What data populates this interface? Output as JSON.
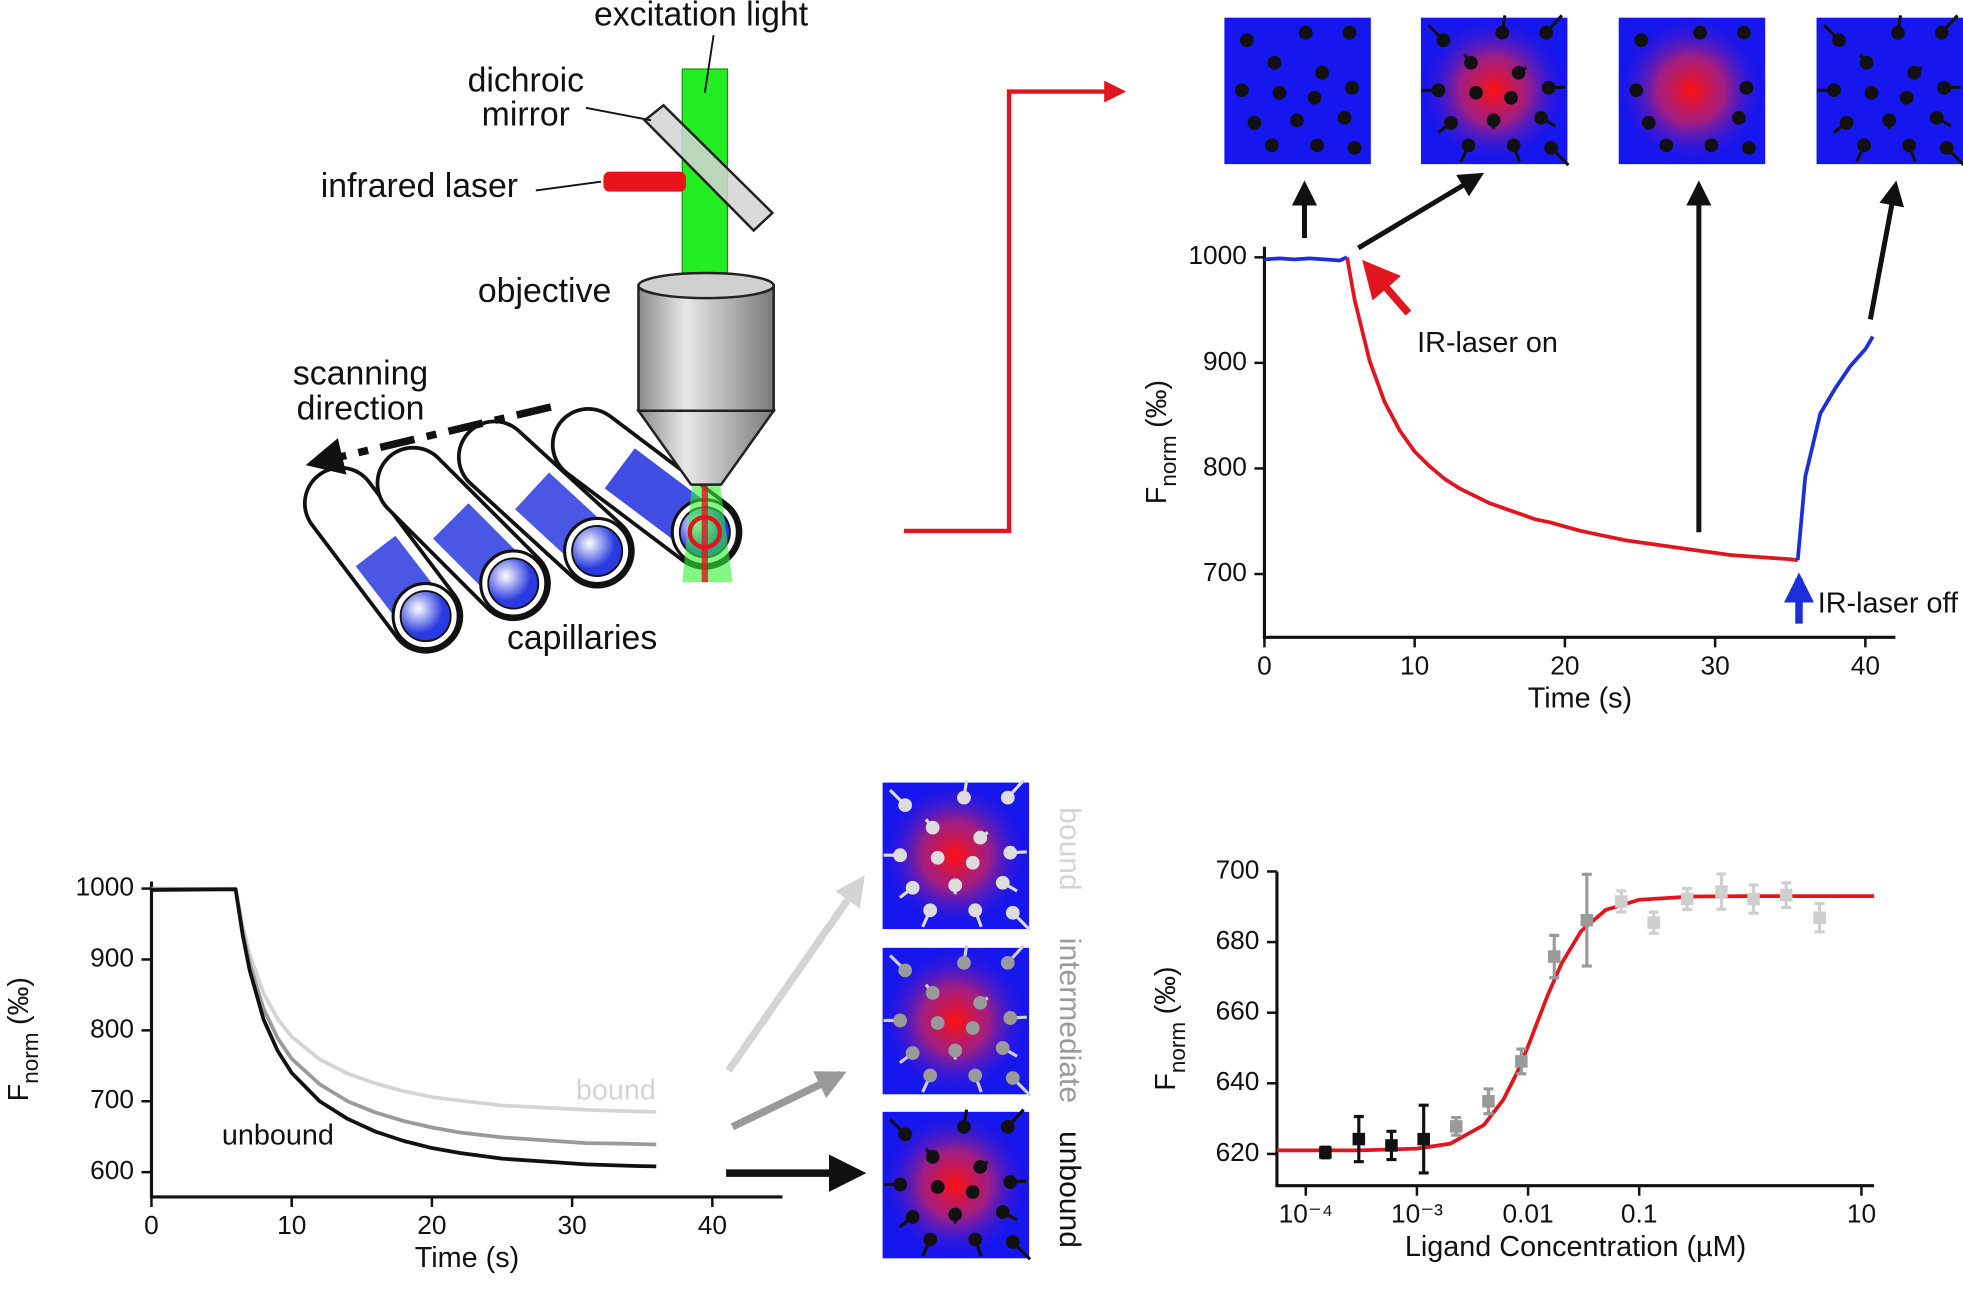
{
  "diagram": {
    "labels": [
      [
        "excitation light"
      ],
      [
        "dichroic",
        "mirror"
      ],
      [
        "infrared laser"
      ],
      [
        "objective"
      ],
      [
        "scanning",
        "direction"
      ],
      [
        "capillaries"
      ]
    ]
  },
  "chart_data": [
    {
      "type": "line",
      "x": [
        0,
        1,
        2,
        3,
        4,
        5,
        5.5,
        6,
        7,
        8,
        9,
        10,
        11,
        12,
        13,
        14,
        15,
        16,
        17,
        18,
        19,
        20,
        21,
        22,
        23,
        24,
        25,
        26,
        27,
        28,
        29,
        30,
        31,
        32,
        33,
        34,
        35,
        35.5,
        36,
        37,
        38,
        39,
        40,
        40.5
      ],
      "series": [
        {
          "color": "#1c2fd8",
          "values": [
            998,
            999,
            998,
            999,
            998,
            997,
            1000,
            null,
            null,
            null,
            null,
            null,
            null,
            null,
            null,
            null,
            null,
            null,
            null,
            null,
            null,
            null,
            null,
            null,
            null,
            null,
            null,
            null,
            null,
            null,
            null,
            null,
            null,
            null,
            null,
            null,
            null,
            null,
            null,
            null,
            null,
            null,
            null,
            null
          ]
        },
        {
          "color": "#e0151f",
          "values": [
            null,
            null,
            null,
            null,
            null,
            null,
            1000,
            960,
            902,
            863,
            836,
            816,
            802,
            790,
            781,
            774,
            767,
            762,
            757,
            752,
            749,
            745,
            741,
            738,
            735,
            732,
            730,
            728,
            726,
            724,
            722,
            720,
            718,
            717,
            716,
            715,
            714,
            713,
            null,
            null,
            null,
            null,
            null,
            null
          ]
        },
        {
          "color": "#1c2fd8",
          "values": [
            null,
            null,
            null,
            null,
            null,
            null,
            null,
            null,
            null,
            null,
            null,
            null,
            null,
            null,
            null,
            null,
            null,
            null,
            null,
            null,
            null,
            null,
            null,
            null,
            null,
            null,
            null,
            null,
            null,
            null,
            null,
            null,
            null,
            null,
            null,
            null,
            null,
            713,
            792,
            852,
            876,
            897,
            913,
            925
          ]
        }
      ],
      "xlim": [
        0,
        42
      ],
      "ylim": [
        640,
        1010
      ],
      "xticks": [
        0,
        10,
        20,
        30,
        40
      ],
      "yticks": [
        700,
        800,
        900,
        1000
      ],
      "xlabel": "Time (s)",
      "ylabel": {
        "main": "F",
        "sub": "norm",
        "unit": "(‰)"
      },
      "annotations": [
        "IR-laser on",
        "IR-laser off"
      ]
    },
    {
      "type": "line",
      "x": [
        0,
        6,
        6.5,
        7,
        8,
        9,
        10,
        12,
        14,
        16,
        18,
        20,
        22,
        25,
        28,
        31,
        34,
        36
      ],
      "series": [
        {
          "name": "bound",
          "color": "#d4d4d4",
          "values": [
            999,
            1000,
            948,
            907,
            852,
            816,
            791,
            759,
            739,
            725,
            714,
            706,
            701,
            694,
            691,
            688,
            686,
            685
          ]
        },
        {
          "name": "intermediate",
          "color": "#9a9a9a",
          "values": [
            1000,
            999,
            940,
            894,
            830,
            789,
            760,
            724,
            700,
            684,
            672,
            663,
            656,
            649,
            645,
            641,
            640,
            639
          ]
        },
        {
          "name": "unbound",
          "color": "#111111",
          "values": [
            998,
            999,
            935,
            885,
            815,
            771,
            740,
            700,
            675,
            657,
            644,
            634,
            627,
            619,
            615,
            611,
            609,
            608
          ]
        }
      ],
      "xlim": [
        0,
        45
      ],
      "ylim": [
        565,
        1010
      ],
      "xticks": [
        0,
        10,
        20,
        30,
        40
      ],
      "yticks": [
        600,
        700,
        800,
        900,
        1000
      ],
      "xlabel": "Time (s)",
      "ylabel": {
        "main": "F",
        "sub": "norm",
        "unit": "(‰)"
      }
    },
    {
      "type": "scatter",
      "log_x": true,
      "series": [
        {
          "color": "#111111",
          "x": [
            0.00015,
            0.0003,
            0.00059,
            0.00115
          ],
          "values": [
            620.4,
            624.2,
            622.4,
            624.2
          ],
          "errors": [
            1.5,
            6.4,
            4,
            9.6
          ]
        },
        {
          "color": "#9a9a9a",
          "x": [
            0.00226,
            0.0044,
            0.0087,
            0.0172,
            0.0338
          ],
          "values": [
            627.8,
            634.9,
            646.2,
            675.9,
            686.2
          ],
          "errors": [
            2.5,
            3.5,
            3.5,
            6,
            13
          ]
        },
        {
          "color": "#cfcfcf",
          "x": [
            0.069,
            0.135,
            0.27,
            0.55,
            1.07,
            2.1,
            4.2
          ],
          "values": [
            691.5,
            685.5,
            692.2,
            694.3,
            692.2,
            693.3,
            686.9
          ],
          "errors": [
            3,
            3,
            3,
            5,
            4,
            3.5,
            4
          ]
        }
      ],
      "fit": {
        "color": "#e0151f",
        "x": [
          5.5e-05,
          0.0001,
          0.0003,
          0.001,
          0.002,
          0.004,
          0.006,
          0.008,
          0.01,
          0.012,
          0.015,
          0.02,
          0.03,
          0.05,
          0.1,
          0.3,
          1,
          3,
          13
        ],
        "values": [
          621,
          621,
          621,
          621.5,
          622.9,
          628.2,
          635.4,
          643.2,
          650.5,
          657,
          664.9,
          673.9,
          683.1,
          689.1,
          692,
          692.9,
          693,
          693,
          693
        ]
      },
      "xlim": [
        5.5e-05,
        13
      ],
      "ylim": [
        611,
        700
      ],
      "xticks": [
        {
          "value": 0.0001,
          "label": "10⁻⁴"
        },
        {
          "value": 0.001,
          "label": "10⁻³"
        },
        0.01,
        0.1,
        10
      ],
      "yticks": [
        620,
        640,
        660,
        680,
        700
      ],
      "xlabel": "Ligand Concentration (µM)",
      "ylabel": {
        "main": "F",
        "sub": "norm",
        "unit": "(‰)"
      }
    }
  ]
}
